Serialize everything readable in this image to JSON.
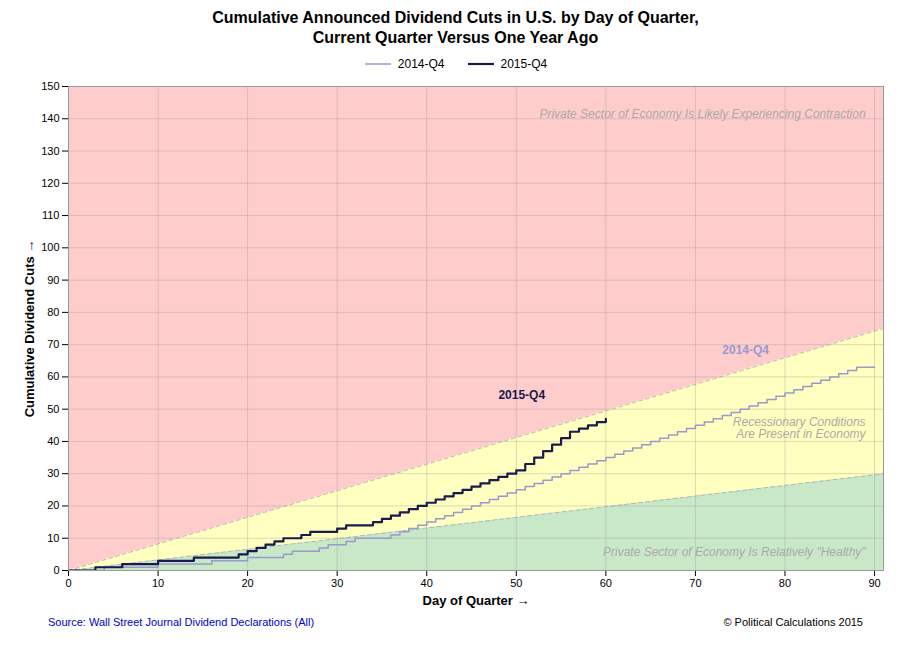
{
  "chart_data": {
    "type": "step",
    "title": "Cumulative Announced Dividend Cuts in U.S. by Day of Quarter,\nCurrent Quarter Versus One Year Ago",
    "xlabel": "Day of Quarter",
    "ylabel": "Cumulative Dividend Cuts",
    "xlim": [
      0,
      91
    ],
    "ylim": [
      0,
      150
    ],
    "xticks": [
      0,
      10,
      20,
      30,
      40,
      50,
      60,
      70,
      80,
      90
    ],
    "yticks": [
      0,
      10,
      20,
      30,
      40,
      50,
      60,
      70,
      80,
      90,
      100,
      110,
      120,
      130,
      140,
      150
    ],
    "grid": true,
    "legend": "top",
    "series": [
      {
        "name": "2014-Q4",
        "color": "#9999cc",
        "x": [
          0,
          1,
          2,
          3,
          4,
          5,
          6,
          7,
          8,
          9,
          10,
          11,
          12,
          13,
          14,
          15,
          16,
          17,
          18,
          19,
          20,
          21,
          22,
          23,
          24,
          25,
          26,
          27,
          28,
          29,
          30,
          31,
          32,
          33,
          34,
          35,
          36,
          37,
          38,
          39,
          40,
          41,
          42,
          43,
          44,
          45,
          46,
          47,
          48,
          49,
          50,
          51,
          52,
          53,
          54,
          55,
          56,
          57,
          58,
          59,
          60,
          61,
          62,
          63,
          64,
          65,
          66,
          67,
          68,
          69,
          70,
          71,
          72,
          73,
          74,
          75,
          76,
          77,
          78,
          79,
          80,
          81,
          82,
          83,
          84,
          85,
          86,
          87,
          88,
          89,
          90
        ],
        "values": [
          0,
          0,
          0,
          0,
          1,
          1,
          1,
          1,
          1,
          1,
          2,
          2,
          2,
          2,
          2,
          2,
          3,
          3,
          3,
          3,
          4,
          4,
          4,
          4,
          5,
          6,
          6,
          6,
          7,
          8,
          8,
          9,
          10,
          10,
          10,
          10,
          11,
          12,
          13,
          14,
          15,
          16,
          17,
          18,
          19,
          20,
          21,
          22,
          23,
          24,
          25,
          26,
          27,
          28,
          29,
          30,
          31,
          32,
          33,
          34,
          35,
          36,
          37,
          38,
          39,
          40,
          41,
          42,
          43,
          44,
          45,
          46,
          47,
          48,
          49,
          50,
          51,
          52,
          53,
          54,
          55,
          56,
          57,
          58,
          59,
          60,
          61,
          62,
          63,
          63,
          63
        ]
      },
      {
        "name": "2015-Q4",
        "color": "#1a1a4d",
        "x": [
          0,
          1,
          2,
          3,
          4,
          5,
          6,
          7,
          8,
          9,
          10,
          11,
          12,
          13,
          14,
          15,
          16,
          17,
          18,
          19,
          20,
          21,
          22,
          23,
          24,
          25,
          26,
          27,
          28,
          29,
          30,
          31,
          32,
          33,
          34,
          35,
          36,
          37,
          38,
          39,
          40,
          41,
          42,
          43,
          44,
          45,
          46,
          47,
          48,
          49,
          50,
          51,
          52,
          53,
          54,
          55,
          56,
          57,
          58,
          59,
          60
        ],
        "values": [
          0,
          0,
          0,
          1,
          1,
          1,
          2,
          2,
          2,
          2,
          3,
          3,
          3,
          3,
          4,
          4,
          4,
          4,
          4,
          5,
          6,
          7,
          8,
          9,
          10,
          10,
          11,
          12,
          12,
          12,
          13,
          14,
          14,
          14,
          15,
          16,
          17,
          18,
          19,
          20,
          21,
          22,
          23,
          24,
          25,
          26,
          27,
          28,
          29,
          30,
          31,
          33,
          35,
          37,
          39,
          41,
          43,
          44,
          45,
          46,
          47
        ]
      }
    ],
    "zones": [
      {
        "name": "Private Sector of Economy Is Relatively \"Healthy\"",
        "color": "#c8e8c8",
        "label_color": "#aaaaaa",
        "x": [
          0,
          91
        ],
        "lower": [
          0,
          0
        ],
        "upper": [
          0,
          30.0
        ],
        "label_x": 89,
        "label_y": 4.5
      },
      {
        "name": "Recessionary Conditions\nAre Present in Economy",
        "color": "#ffffc0",
        "label_color": "#aaaaaa",
        "x": [
          0,
          91
        ],
        "lower": [
          0,
          30.0
        ],
        "upper": [
          0,
          75.0
        ],
        "label_x": 89,
        "label_y": 44
      },
      {
        "name": "Private Sector of Economy Is Likely Experiencing Contraction",
        "color": "#ffcccc",
        "label_color": "#aaaaaa",
        "x": [
          0,
          91
        ],
        "lower": [
          0,
          75.0
        ],
        "upper": [
          150,
          150
        ],
        "label_x": 89,
        "label_y": 143
      }
    ],
    "annotations": [
      {
        "text": "2014-Q4",
        "x": 73,
        "y": 67,
        "color": "#9999cc"
      },
      {
        "text": "2015-Q4",
        "x": 48,
        "y": 53,
        "color": "#1a1a4d"
      }
    ],
    "footer": [
      {
        "text": "Source: Wall Street Journal Dividend Declarations (All)",
        "color": "#0000cc"
      },
      {
        "text": "© Political Calculations 2015",
        "color": "#000000"
      }
    ]
  }
}
